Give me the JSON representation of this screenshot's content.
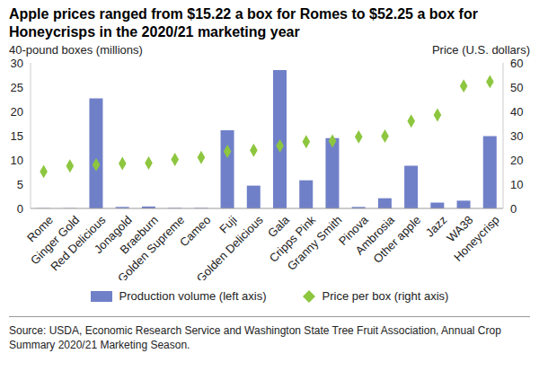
{
  "chart_data": {
    "type": "bar",
    "title": "Apple prices ranged from $15.22 a box for Romes to $52.25 a box for Honeycrisps in the 2020/21 marketing year",
    "y_label": "40-pound boxes (millions)",
    "y2_label": "Price (U.S. dollars)",
    "annotations": [
      "Source: USDA, Economic Research Service and Washington State Tree Fruit Association, Annual Crop Summary 2020/21 Marketing Season."
    ],
    "categories": [
      "Rome",
      "Ginger Gold",
      "Red Delicious",
      "Jonagold",
      "Braeburn",
      "Golden Supreme",
      "Cameo",
      "Fuji",
      "Golden Delicious",
      "Gala",
      "Cripps Pink",
      "Granny Smith",
      "Pinova",
      "Ambrosia",
      "Other apple",
      "Jazz",
      "WA38",
      "Honeycrisp"
    ],
    "series": [
      {
        "name": "Production volume (left axis)",
        "type": "bar",
        "color": "#7080c8",
        "values": [
          0.05,
          0.05,
          22.7,
          0.3,
          0.4,
          0.1,
          0.1,
          16.1,
          4.7,
          28.5,
          5.8,
          14.5,
          0.3,
          2.1,
          8.8,
          1.2,
          1.6,
          14.9
        ]
      },
      {
        "name": "Price per box (right axis)",
        "type": "scatter",
        "marker": "diamond",
        "axis": "y2",
        "color": "#8dc63f",
        "values": [
          15.22,
          17.5,
          18,
          18.5,
          18.7,
          20.2,
          21,
          23.5,
          24,
          25.8,
          27.5,
          27.8,
          29.5,
          29.8,
          36,
          38.5,
          50.5,
          52.25
        ]
      }
    ],
    "ylim": [
      0,
      30
    ],
    "yticks": [
      0,
      5,
      10,
      15,
      20,
      25,
      30
    ],
    "y2lim": [
      0,
      60
    ],
    "y2ticks": [
      0,
      10,
      20,
      30,
      40,
      50,
      60
    ],
    "grid": false,
    "legend": "bottom"
  }
}
